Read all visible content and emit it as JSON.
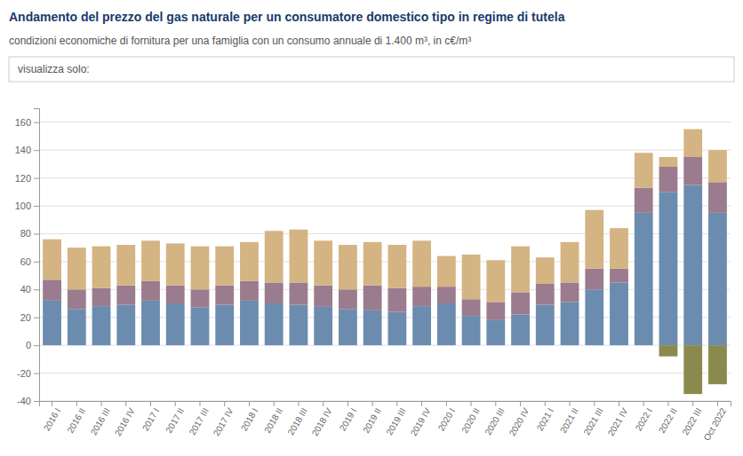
{
  "chart_data": {
    "type": "bar",
    "stacked": true,
    "grid": true,
    "title": "Andamento del prezzo del gas naturale per un consumatore domestico tipo in regime di tutela",
    "subtitle": "condizioni economiche di fornitura per una famiglia con un consumo annuale di 1.400 m³, in c€/m³",
    "annotations": [
      "visualizza solo:"
    ],
    "categories": [
      "2016 I",
      "2016 II",
      "2016 III",
      "2016 IV",
      "2017 I",
      "2017 II",
      "2017 III",
      "2017 IV",
      "2018 I",
      "2018 II",
      "2018 III",
      "2018 IV",
      "2019 I",
      "2019 II",
      "2019 III",
      "2019 IV",
      "2020 I",
      "2020 II",
      "2020 III",
      "2020 IV",
      "2021 I",
      "2021 II",
      "2021 III",
      "2021 IV",
      "2022 I",
      "2022 II",
      "2022 III",
      "Oct 2022"
    ],
    "series": [
      {
        "color": "#6b8cae",
        "values": [
          32,
          26,
          28,
          29,
          32,
          30,
          27,
          29,
          32,
          30,
          29,
          28,
          26,
          25,
          24,
          28,
          30,
          21,
          18,
          22,
          29,
          31,
          40,
          45,
          95,
          110,
          115,
          95
        ]
      },
      {
        "color": "#9b7b8e",
        "values": [
          15,
          14,
          13,
          14,
          14,
          13,
          13,
          14,
          14,
          15,
          16,
          15,
          14,
          18,
          17,
          14,
          12,
          12,
          13,
          16,
          15,
          14,
          15,
          10,
          18,
          18,
          20,
          22
        ]
      },
      {
        "color": "#d4b483",
        "values": [
          29,
          30,
          30,
          29,
          29,
          30,
          31,
          28,
          28,
          37,
          38,
          32,
          32,
          31,
          31,
          33,
          22,
          32,
          30,
          33,
          19,
          29,
          42,
          29,
          25,
          7,
          20,
          23
        ]
      },
      {
        "color": "#8b8a4e",
        "values": [
          0,
          0,
          0,
          0,
          0,
          0,
          0,
          0,
          0,
          0,
          0,
          0,
          0,
          0,
          0,
          0,
          0,
          0,
          0,
          0,
          0,
          0,
          0,
          0,
          0,
          -8,
          -35,
          -28
        ]
      }
    ],
    "ylim": [
      -40,
      170
    ],
    "yticks": [
      -40,
      -20,
      0,
      20,
      40,
      60,
      80,
      100,
      120,
      140,
      160
    ]
  }
}
